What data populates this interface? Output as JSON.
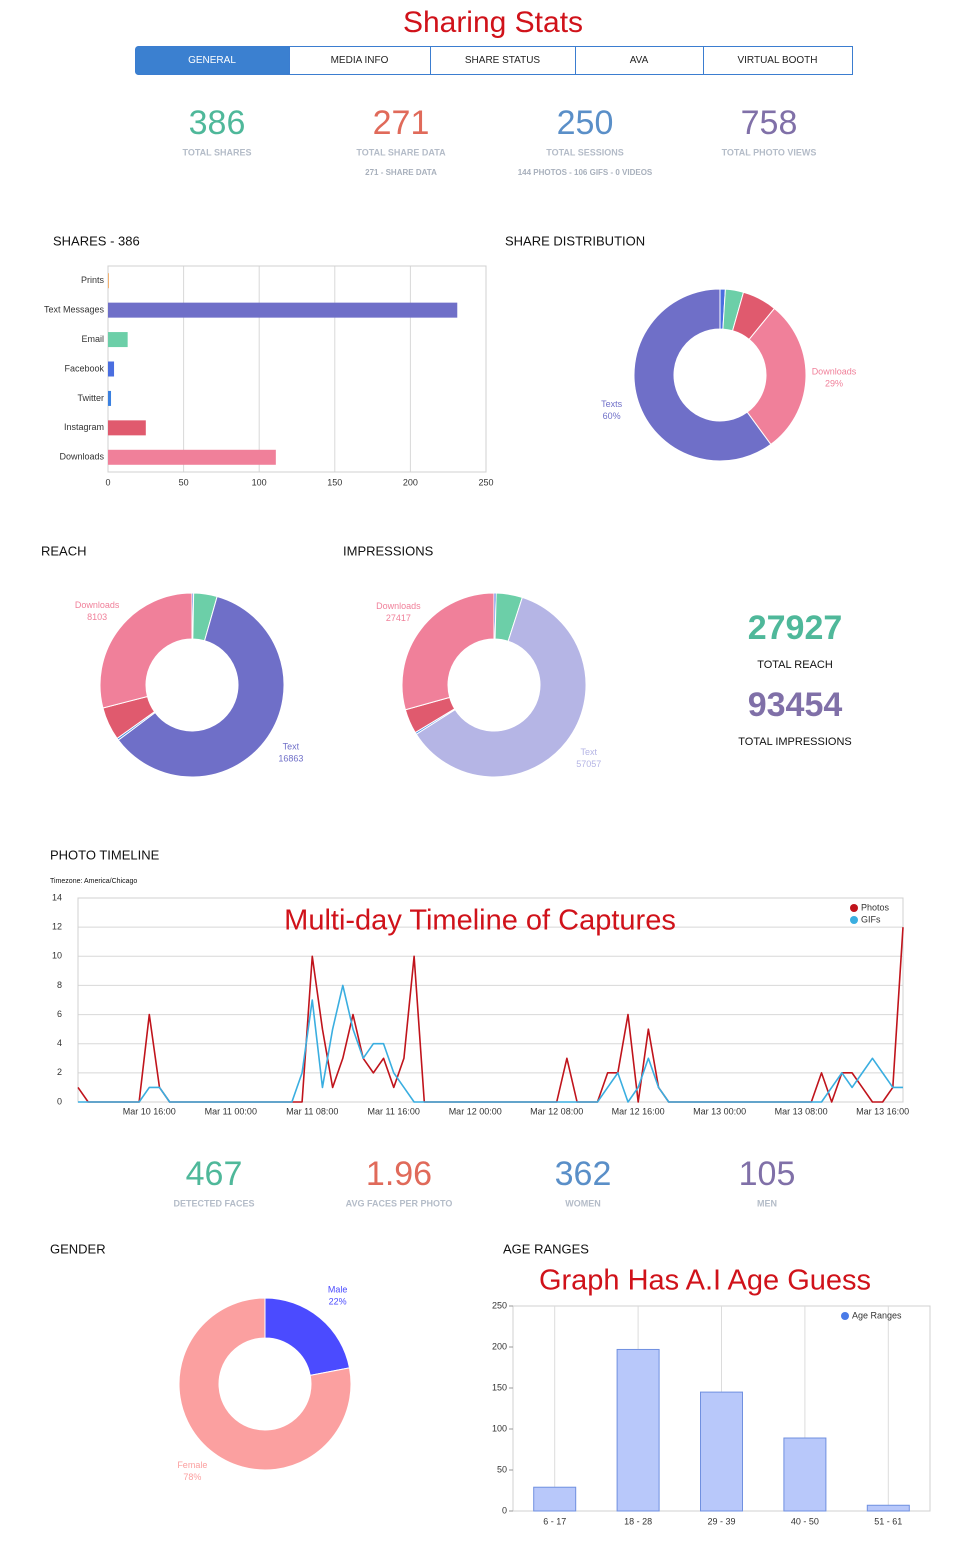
{
  "title": "Sharing Stats",
  "tabs": [
    "GENERAL",
    "MEDIA INFO",
    "SHARE STATUS",
    "AVA",
    "VIRTUAL BOOTH"
  ],
  "stats": [
    {
      "value": 386,
      "label": "TOTAL SHARES"
    },
    {
      "value": 271,
      "label": "TOTAL SHARE DATA",
      "note": "271 - SHARE DATA"
    },
    {
      "value": 250,
      "label": "TOTAL SESSIONS",
      "note": "144 PHOTOS - 106 GIFS - 0 VIDEOS"
    },
    {
      "value": 758,
      "label": "TOTAL PHOTO VIEWS"
    }
  ],
  "totals": [
    {
      "value": 27927,
      "label": "TOTAL REACH"
    },
    {
      "value": 93454,
      "label": "TOTAL IMPRESSIONS"
    }
  ],
  "face_stats": [
    {
      "value": 467,
      "label": "DETECTED FACES"
    },
    {
      "value": 1.96,
      "label": "AVG FACES PER PHOTO"
    },
    {
      "value": 362,
      "label": "WOMEN"
    },
    {
      "value": 105,
      "label": "MEN"
    }
  ],
  "annotations": [
    "Multi-day Timeline of Captures",
    "Graph Has A.I Age Guess"
  ],
  "chart_data": [
    {
      "type": "bar",
      "horizontal": true,
      "title": "SHARES - 386",
      "categories": [
        "Prints",
        "Text Messages",
        "Email",
        "Facebook",
        "Twitter",
        "Instagram",
        "Downloads"
      ],
      "values": [
        0,
        231,
        13,
        4,
        2,
        25,
        111
      ],
      "colors": [
        "#f0a050",
        "#6f6fc8",
        "#6ccfa8",
        "#4a6ee0",
        "#3a80e0",
        "#e05a6e",
        "#f0809a"
      ],
      "xlim": [
        0,
        250
      ],
      "xticks": [
        0,
        50,
        100,
        150,
        200,
        250
      ],
      "grid": true
    },
    {
      "type": "donut",
      "title": "SHARE DISTRIBUTION",
      "categories": [
        null,
        null,
        null,
        "Downloads",
        "Texts"
      ],
      "values": [
        1,
        3.4,
        6.5,
        29,
        60
      ],
      "value_labels": [
        null,
        null,
        null,
        "29%",
        "60%"
      ],
      "colors": [
        "#4a6ee0",
        "#6ccfa8",
        "#e05a6e",
        "#f0809a",
        "#6f6fc8"
      ]
    },
    {
      "type": "donut",
      "title": "REACH",
      "categories": [
        null,
        null,
        "Text",
        null,
        null,
        "Downloads"
      ],
      "values": [
        80,
        1150,
        16863,
        100,
        1631,
        8103
      ],
      "colors": [
        "#4a6ee0",
        "#6ccfa8",
        "#6f6fc8",
        "#3a80e0",
        "#e05a6e",
        "#f0809a"
      ]
    },
    {
      "type": "donut",
      "title": "IMPRESSIONS",
      "categories": [
        null,
        null,
        "Text",
        null,
        null,
        "Downloads"
      ],
      "values": [
        350,
        4300,
        57057,
        300,
        4030,
        27417
      ],
      "colors": [
        "#4a6ee0",
        "#6ccfa8",
        "#b5b5e5",
        "#3a80e0",
        "#e05a6e",
        "#f0809a"
      ]
    },
    {
      "type": "line",
      "title": "PHOTO TIMELINE",
      "subtitle": "Timezone: America/Chicago",
      "x": [
        "Mar 10 09:00",
        "Mar 10 10:00",
        "Mar 10 11:00",
        "Mar 10 12:00",
        "Mar 10 13:00",
        "Mar 10 14:00",
        "Mar 10 15:00",
        "Mar 10 16:00",
        "Mar 10 17:00",
        "Mar 10 18:00",
        "Mar 10 19:00",
        "Mar 10 20:00",
        "Mar 10 21:00",
        "Mar 10 22:00",
        "Mar 10 23:00",
        "Mar 11 00:00",
        "Mar 11 01:00",
        "Mar 11 02:00",
        "Mar 11 03:00",
        "Mar 11 04:00",
        "Mar 11 05:00",
        "Mar 11 06:00",
        "Mar 11 07:00",
        "Mar 11 08:00",
        "Mar 11 09:00",
        "Mar 11 10:00",
        "Mar 11 11:00",
        "Mar 11 12:00",
        "Mar 11 13:00",
        "Mar 11 14:00",
        "Mar 11 15:00",
        "Mar 11 16:00",
        "Mar 11 17:00",
        "Mar 11 18:00",
        "Mar 11 19:00",
        "Mar 11 20:00",
        "Mar 11 21:00",
        "Mar 11 22:00",
        "Mar 11 23:00",
        "Mar 12 00:00",
        "Mar 12 01:00",
        "Mar 12 02:00",
        "Mar 12 03:00",
        "Mar 12 04:00",
        "Mar 12 05:00",
        "Mar 12 06:00",
        "Mar 12 07:00",
        "Mar 12 08:00",
        "Mar 12 09:00",
        "Mar 12 10:00",
        "Mar 12 11:00",
        "Mar 12 12:00",
        "Mar 12 13:00",
        "Mar 12 14:00",
        "Mar 12 15:00",
        "Mar 12 16:00",
        "Mar 12 17:00",
        "Mar 12 18:00",
        "Mar 12 19:00",
        "Mar 12 20:00",
        "Mar 12 21:00",
        "Mar 12 22:00",
        "Mar 12 23:00",
        "Mar 13 00:00",
        "Mar 13 01:00",
        "Mar 13 02:00",
        "Mar 13 03:00",
        "Mar 13 04:00",
        "Mar 13 05:00",
        "Mar 13 06:00",
        "Mar 13 07:00",
        "Mar 13 08:00",
        "Mar 13 09:00",
        "Mar 13 10:00",
        "Mar 13 11:00",
        "Mar 13 12:00",
        "Mar 13 13:00",
        "Mar 13 14:00",
        "Mar 13 15:00",
        "Mar 13 16:00",
        "Mar 13 17:00",
        "Mar 13 18:00"
      ],
      "series": [
        {
          "name": "Photos",
          "color": "#c0141c",
          "values": [
            1,
            0,
            0,
            0,
            0,
            0,
            0,
            6,
            1,
            0,
            0,
            0,
            0,
            0,
            0,
            0,
            0,
            0,
            0,
            0,
            0,
            0,
            0,
            10,
            5,
            1,
            3,
            6,
            3,
            2,
            3,
            1,
            3,
            10,
            0,
            0,
            0,
            0,
            0,
            0,
            0,
            0,
            0,
            0,
            0,
            0,
            0,
            0,
            3,
            0,
            0,
            0,
            2,
            2,
            6,
            0,
            5,
            1,
            0,
            0,
            0,
            0,
            0,
            0,
            0,
            0,
            0,
            0,
            0,
            0,
            0,
            0,
            0,
            2,
            0,
            2,
            2,
            1,
            0,
            0,
            1,
            12
          ]
        },
        {
          "name": "GIFs",
          "color": "#3aaee0",
          "values": [
            0,
            0,
            0,
            0,
            0,
            0,
            0,
            1,
            1,
            0,
            0,
            0,
            0,
            0,
            0,
            0,
            0,
            0,
            0,
            0,
            0,
            0,
            2,
            7,
            1,
            5,
            8,
            5,
            3,
            4,
            4,
            2,
            1,
            0,
            0,
            0,
            0,
            0,
            0,
            0,
            0,
            0,
            0,
            0,
            0,
            0,
            0,
            0,
            0,
            0,
            0,
            0,
            1,
            2,
            0,
            1,
            3,
            1,
            0,
            0,
            0,
            0,
            0,
            0,
            0,
            0,
            0,
            0,
            0,
            0,
            0,
            0,
            0,
            0,
            1,
            2,
            1,
            2,
            3,
            2,
            1,
            1
          ]
        }
      ],
      "xticks": [
        "Mar 10 16:00",
        "Mar 11 00:00",
        "Mar 11 08:00",
        "Mar 11 16:00",
        "Mar 12 00:00",
        "Mar 12 08:00",
        "Mar 12 16:00",
        "Mar 13 00:00",
        "Mar 13 08:00",
        "Mar 13 16:00"
      ],
      "ylim": [
        0,
        14
      ],
      "yticks": [
        0,
        2,
        4,
        6,
        8,
        10,
        12,
        14
      ],
      "grid": true,
      "legend": "top-right"
    },
    {
      "type": "donut",
      "title": "GENDER",
      "categories": [
        "Male",
        "Female"
      ],
      "values": [
        22,
        78
      ],
      "value_labels": [
        "22%",
        "78%"
      ],
      "colors": [
        "#4b4bff",
        "#fba0a0"
      ]
    },
    {
      "type": "bar",
      "title": "AGE RANGES",
      "categories": [
        "6 - 17",
        "18 - 28",
        "29 - 39",
        "40 - 50",
        "51 - 61"
      ],
      "series": [
        {
          "name": "Age Ranges",
          "color": "#b8c8fa",
          "values": [
            29,
            197,
            145,
            89,
            7
          ]
        }
      ],
      "ylim": [
        0,
        250
      ],
      "yticks": [
        0,
        50,
        100,
        150,
        200,
        250
      ],
      "legend": "top-right"
    }
  ]
}
